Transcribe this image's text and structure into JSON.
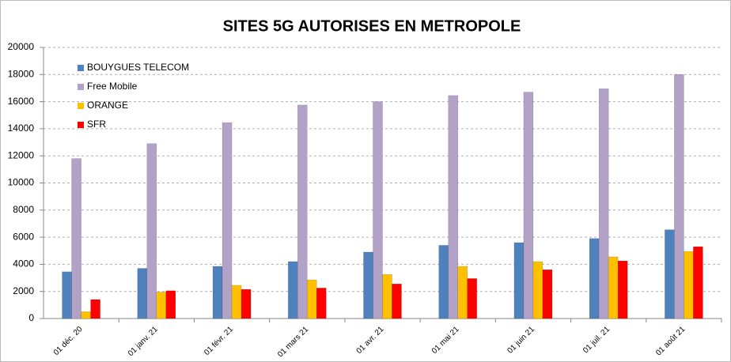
{
  "chart_data": {
    "type": "bar",
    "title": "SITES 5G AUTORISES EN METROPOLE",
    "categories": [
      "01 déc. 20",
      "01 janv. 21",
      "01 févr. 21",
      "01 mars 21",
      "01 avr. 21",
      "01 mai 21",
      "01 juin 21",
      "01 juil. 21",
      "01 août 21"
    ],
    "series": [
      {
        "name": "BOUYGUES TELECOM",
        "color": "#4f81bd",
        "values": [
          3450,
          3700,
          3850,
          4200,
          4900,
          5400,
          5600,
          5900,
          6550
        ]
      },
      {
        "name": "Free Mobile",
        "color": "#b3a2c7",
        "values": [
          11800,
          12900,
          14450,
          15750,
          16000,
          16450,
          16700,
          16950,
          18000
        ]
      },
      {
        "name": "ORANGE",
        "color": "#ffc000",
        "values": [
          500,
          1950,
          2450,
          2850,
          3250,
          3850,
          4200,
          4550,
          4950
        ]
      },
      {
        "name": "SFR",
        "color": "#ff0000",
        "values": [
          1400,
          2050,
          2150,
          2250,
          2550,
          2950,
          3600,
          4250,
          5300
        ]
      }
    ],
    "ylim": [
      0,
      20000
    ],
    "yticks": [
      0,
      2000,
      4000,
      6000,
      8000,
      10000,
      12000,
      14000,
      16000,
      18000,
      20000
    ],
    "grid": true,
    "legend": "top-left"
  }
}
